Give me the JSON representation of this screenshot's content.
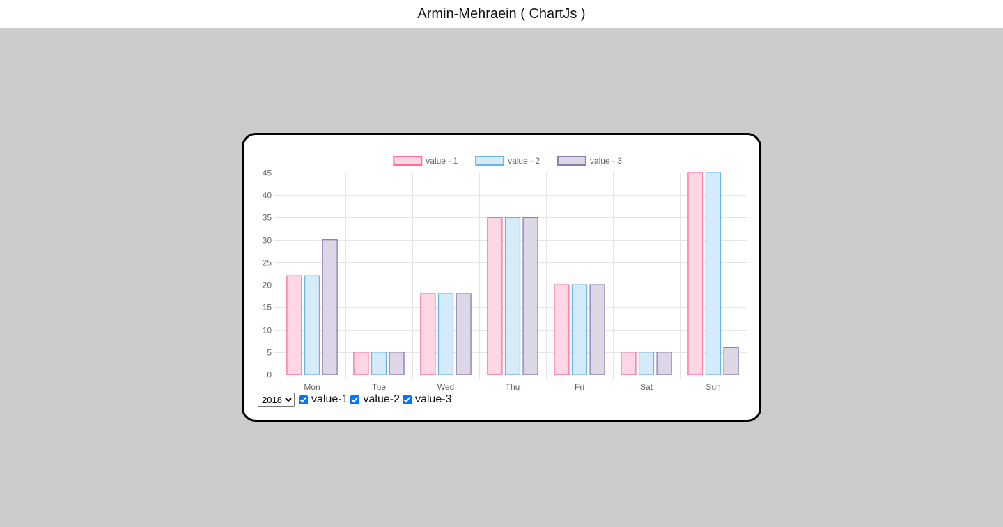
{
  "header": {
    "title": "Armin-Mehraein ( ChartJs )"
  },
  "controls": {
    "year_select": {
      "selected": "2018",
      "options": [
        "2018"
      ]
    },
    "checkboxes": [
      {
        "label": "value-1",
        "checked": true
      },
      {
        "label": "value-2",
        "checked": true
      },
      {
        "label": "value-3",
        "checked": true
      }
    ]
  },
  "chart_data": {
    "type": "bar",
    "categories": [
      "Mon",
      "Tue",
      "Wed",
      "Thu",
      "Fri",
      "Sat",
      "Sun"
    ],
    "series": [
      {
        "name": "value - 1",
        "values": [
          22,
          5,
          18,
          35,
          20,
          5,
          45
        ],
        "fill": "#ffd6e4",
        "stroke": "#ff6b9a"
      },
      {
        "name": "value - 2",
        "values": [
          22,
          5,
          18,
          35,
          20,
          5,
          45
        ],
        "fill": "#d6ebfa",
        "stroke": "#6bb5e6"
      },
      {
        "name": "value - 3",
        "values": [
          30,
          5,
          18,
          35,
          20,
          5,
          6
        ],
        "fill": "#dcd6e6",
        "stroke": "#8a7db0"
      }
    ],
    "ylim": [
      0,
      45
    ],
    "yticks": [
      0,
      5,
      10,
      15,
      20,
      25,
      30,
      35,
      40,
      45
    ],
    "grid": true,
    "legend": "top-center",
    "title": "",
    "xlabel": "",
    "ylabel": ""
  }
}
